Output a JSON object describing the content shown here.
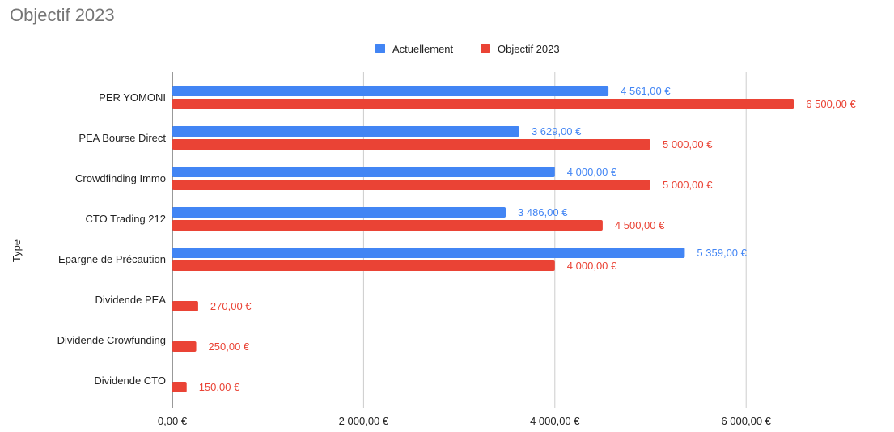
{
  "chart_data": {
    "type": "bar",
    "orientation": "horizontal",
    "title": "Objectif 2023",
    "ylabel": "Type",
    "xlabel": "",
    "categories": [
      "PER YOMONI",
      "PEA Bourse Direct",
      "Crowdfinding Immo",
      "CTO Trading 212",
      "Epargne de Précaution",
      "Dividende PEA",
      "Dividende Crowfunding",
      "Dividende CTO"
    ],
    "series": [
      {
        "name": "Actuellement",
        "color": "#4285f4",
        "values": [
          4561,
          3629,
          4000,
          3486,
          5359,
          null,
          null,
          null
        ],
        "labels": [
          "4 561,00 €",
          "3 629,00 €",
          "4 000,00 €",
          "3 486,00 €",
          "5 359,00 €",
          null,
          null,
          null
        ]
      },
      {
        "name": "Objectif 2023",
        "color": "#ea4335",
        "values": [
          6500,
          5000,
          5000,
          4500,
          4000,
          270,
          250,
          150
        ],
        "labels": [
          "6 500,00 €",
          "5 000,00 €",
          "5 000,00 €",
          "4 500,00 €",
          "4 000,00 €",
          "270,00 €",
          "250,00 €",
          "150,00 €"
        ]
      }
    ],
    "xlim": [
      0,
      7000
    ],
    "xticks": [
      0,
      2000,
      4000,
      6000
    ],
    "xtick_labels": [
      "0,00 €",
      "2 000,00 €",
      "4 000,00 €",
      "6 000,00 €"
    ],
    "grid": true,
    "legend_position": "top"
  }
}
